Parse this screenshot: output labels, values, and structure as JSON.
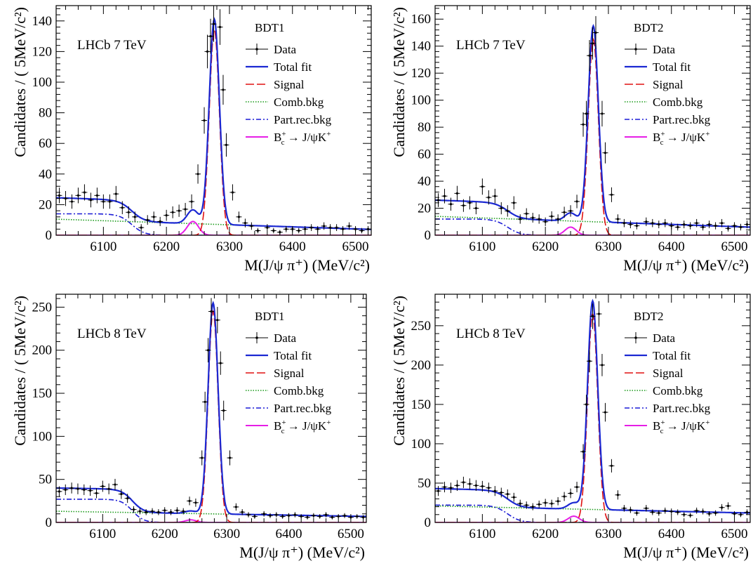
{
  "chart_data": [
    {
      "type": "line",
      "label_experiment": "LHCb 7 TeV",
      "label_selection": "BDT1",
      "xlabel": "M(J/ψ π⁺) (MeV/c²)",
      "ylabel": "Candidates / ( 5MeV/c²)",
      "xlim": [
        6025,
        6525
      ],
      "ylim": [
        0,
        150
      ],
      "xticks": [
        6100,
        6200,
        6300,
        6400,
        6500
      ],
      "yticks": [
        0,
        20,
        40,
        60,
        80,
        100,
        120,
        140
      ],
      "legend": [
        "Data",
        "Total fit",
        "Signal",
        "Comb.bkg",
        "Part.rec.bkg",
        "B_c^+ → J/ψK^+"
      ],
      "signal": {
        "mean": 6276,
        "sigma": 8,
        "amp": 134
      },
      "comb": {
        "a": 10.5,
        "b": 3.8
      },
      "partrec": {
        "level": 14,
        "edge": 6145,
        "width": 10
      },
      "bc2jpsik": {
        "mean": 6242,
        "sigma": 9,
        "amp": 9
      },
      "data": [
        [
          6030,
          26
        ],
        [
          6040,
          24
        ],
        [
          6050,
          22
        ],
        [
          6060,
          26
        ],
        [
          6070,
          28
        ],
        [
          6080,
          23
        ],
        [
          6090,
          26
        ],
        [
          6100,
          22
        ],
        [
          6110,
          22
        ],
        [
          6120,
          27
        ],
        [
          6130,
          18
        ],
        [
          6140,
          15
        ],
        [
          6150,
          12
        ],
        [
          6160,
          5
        ],
        [
          6170,
          10
        ],
        [
          6180,
          12
        ],
        [
          6190,
          9
        ],
        [
          6200,
          13
        ],
        [
          6210,
          15
        ],
        [
          6220,
          16
        ],
        [
          6230,
          17
        ],
        [
          6240,
          22
        ],
        [
          6250,
          40
        ],
        [
          6260,
          75
        ],
        [
          6265,
          120
        ],
        [
          6270,
          130
        ],
        [
          6275,
          138
        ],
        [
          6285,
          136
        ],
        [
          6290,
          95
        ],
        [
          6295,
          59
        ],
        [
          6305,
          28
        ],
        [
          6315,
          12
        ],
        [
          6325,
          8
        ],
        [
          6335,
          6
        ],
        [
          6345,
          3
        ],
        [
          6360,
          5
        ],
        [
          6370,
          3
        ],
        [
          6380,
          2
        ],
        [
          6390,
          4
        ],
        [
          6400,
          4
        ],
        [
          6410,
          3
        ],
        [
          6420,
          4
        ],
        [
          6430,
          5
        ],
        [
          6440,
          4
        ],
        [
          6450,
          6
        ],
        [
          6460,
          5
        ],
        [
          6470,
          5
        ],
        [
          6480,
          4
        ],
        [
          6490,
          6
        ],
        [
          6500,
          4
        ],
        [
          6510,
          3
        ],
        [
          6520,
          4
        ]
      ]
    },
    {
      "type": "line",
      "label_experiment": "LHCb 7 TeV",
      "label_selection": "BDT2",
      "xlabel": "M(J/ψ π⁺) (MeV/c²)",
      "ylabel": "Candidates / ( 5MeV/c²)",
      "xlim": [
        6025,
        6525
      ],
      "ylim": [
        0,
        170
      ],
      "xticks": [
        6100,
        6200,
        6300,
        6400,
        6500
      ],
      "yticks": [
        0,
        20,
        40,
        60,
        80,
        100,
        120,
        140,
        160
      ],
      "legend": [
        "Data",
        "Total fit",
        "Signal",
        "Comb.bkg",
        "Part.rec.bkg",
        "B_c^+ → J/ψK^+"
      ],
      "signal": {
        "mean": 6276,
        "sigma": 8,
        "amp": 145
      },
      "comb": {
        "a": 14,
        "b": 6
      },
      "partrec": {
        "level": 12,
        "edge": 6140,
        "width": 10
      },
      "bc2jpsik": {
        "mean": 6240,
        "sigma": 9,
        "amp": 6
      },
      "data": [
        [
          6030,
          26
        ],
        [
          6040,
          29
        ],
        [
          6050,
          23
        ],
        [
          6060,
          31
        ],
        [
          6070,
          22
        ],
        [
          6080,
          24
        ],
        [
          6090,
          20
        ],
        [
          6100,
          36
        ],
        [
          6110,
          28
        ],
        [
          6120,
          29
        ],
        [
          6130,
          20
        ],
        [
          6140,
          18
        ],
        [
          6150,
          24
        ],
        [
          6160,
          12
        ],
        [
          6170,
          16
        ],
        [
          6180,
          13
        ],
        [
          6190,
          12
        ],
        [
          6200,
          10
        ],
        [
          6210,
          14
        ],
        [
          6220,
          12
        ],
        [
          6230,
          17
        ],
        [
          6240,
          18
        ],
        [
          6250,
          25
        ],
        [
          6260,
          82
        ],
        [
          6265,
          90
        ],
        [
          6270,
          133
        ],
        [
          6275,
          142
        ],
        [
          6280,
          150
        ],
        [
          6290,
          90
        ],
        [
          6295,
          61
        ],
        [
          6305,
          30
        ],
        [
          6315,
          12
        ],
        [
          6325,
          9
        ],
        [
          6335,
          8
        ],
        [
          6345,
          7
        ],
        [
          6360,
          10
        ],
        [
          6370,
          9
        ],
        [
          6380,
          8
        ],
        [
          6390,
          9
        ],
        [
          6400,
          7
        ],
        [
          6410,
          6
        ],
        [
          6420,
          8
        ],
        [
          6430,
          7
        ],
        [
          6440,
          9
        ],
        [
          6450,
          6
        ],
        [
          6460,
          8
        ],
        [
          6470,
          7
        ],
        [
          6480,
          9
        ],
        [
          6490,
          5
        ],
        [
          6500,
          7
        ],
        [
          6510,
          6
        ],
        [
          6520,
          8
        ]
      ]
    },
    {
      "type": "line",
      "label_experiment": "LHCb 8 TeV",
      "label_selection": "BDT1",
      "xlabel": "M(J/ψ π⁺) (MeV/c²)",
      "ylabel": "Candidates / ( 5MeV/c²)",
      "xlim": [
        6025,
        6525
      ],
      "ylim": [
        0,
        265
      ],
      "xticks": [
        6100,
        6200,
        6300,
        6400,
        6500
      ],
      "yticks": [
        0,
        50,
        100,
        150,
        200,
        250
      ],
      "legend": [
        "Data",
        "Total fit",
        "Signal",
        "Comb.bkg",
        "Part.rec.bkg",
        "B_c^+ → J/ψK^+"
      ],
      "signal": {
        "mean": 6278,
        "sigma": 8,
        "amp": 245
      },
      "comb": {
        "a": 13,
        "b": 7
      },
      "partrec": {
        "level": 27,
        "edge": 6148,
        "width": 9
      },
      "bc2jpsik": {
        "mean": 6242,
        "sigma": 9,
        "amp": 3
      },
      "data": [
        [
          6030,
          36
        ],
        [
          6040,
          38
        ],
        [
          6050,
          40
        ],
        [
          6060,
          39
        ],
        [
          6070,
          38
        ],
        [
          6080,
          37
        ],
        [
          6090,
          34
        ],
        [
          6100,
          42
        ],
        [
          6110,
          39
        ],
        [
          6120,
          44
        ],
        [
          6130,
          33
        ],
        [
          6140,
          28
        ],
        [
          6150,
          15
        ],
        [
          6160,
          13
        ],
        [
          6170,
          12
        ],
        [
          6180,
          13
        ],
        [
          6190,
          12
        ],
        [
          6200,
          14
        ],
        [
          6210,
          12
        ],
        [
          6220,
          14
        ],
        [
          6230,
          13
        ],
        [
          6240,
          25
        ],
        [
          6250,
          23
        ],
        [
          6260,
          75
        ],
        [
          6265,
          140
        ],
        [
          6270,
          200
        ],
        [
          6275,
          245
        ],
        [
          6285,
          235
        ],
        [
          6290,
          185
        ],
        [
          6295,
          130
        ],
        [
          6305,
          75
        ],
        [
          6315,
          18
        ],
        [
          6325,
          12
        ],
        [
          6335,
          9
        ],
        [
          6345,
          7
        ],
        [
          6360,
          10
        ],
        [
          6370,
          8
        ],
        [
          6380,
          9
        ],
        [
          6390,
          7
        ],
        [
          6400,
          8
        ],
        [
          6410,
          9
        ],
        [
          6420,
          7
        ],
        [
          6430,
          6
        ],
        [
          6440,
          8
        ],
        [
          6450,
          7
        ],
        [
          6460,
          9
        ],
        [
          6470,
          6
        ],
        [
          6480,
          7
        ],
        [
          6490,
          8
        ],
        [
          6500,
          6
        ],
        [
          6510,
          7
        ],
        [
          6520,
          6
        ]
      ]
    },
    {
      "type": "line",
      "label_experiment": "LHCb 8 TeV",
      "label_selection": "BDT2",
      "xlabel": "M(J/ψ π⁺) (MeV/c²)",
      "ylabel": "Candidates / ( 5MeV/c²)",
      "xlim": [
        6025,
        6525
      ],
      "ylim": [
        0,
        290
      ],
      "xticks": [
        6100,
        6200,
        6300,
        6400,
        6500
      ],
      "yticks": [
        0,
        50,
        100,
        150,
        200,
        250
      ],
      "legend": [
        "Data",
        "Total fit",
        "Signal",
        "Comb.bkg",
        "Part.rec.bkg",
        "B_c^+ → J/ψK^+"
      ],
      "signal": {
        "mean": 6275,
        "sigma": 8,
        "amp": 265
      },
      "comb": {
        "a": 21,
        "b": 12
      },
      "partrec": {
        "level": 22,
        "edge": 6140,
        "width": 10
      },
      "bc2jpsik": {
        "mean": 6245,
        "sigma": 9,
        "amp": 8
      },
      "data": [
        [
          6030,
          40
        ],
        [
          6040,
          45
        ],
        [
          6050,
          44
        ],
        [
          6060,
          47
        ],
        [
          6070,
          51
        ],
        [
          6080,
          49
        ],
        [
          6090,
          47
        ],
        [
          6100,
          46
        ],
        [
          6110,
          44
        ],
        [
          6120,
          40
        ],
        [
          6130,
          38
        ],
        [
          6140,
          36
        ],
        [
          6150,
          32
        ],
        [
          6160,
          24
        ],
        [
          6170,
          22
        ],
        [
          6180,
          20
        ],
        [
          6190,
          23
        ],
        [
          6200,
          25
        ],
        [
          6210,
          24
        ],
        [
          6220,
          27
        ],
        [
          6230,
          33
        ],
        [
          6240,
          37
        ],
        [
          6250,
          45
        ],
        [
          6260,
          90
        ],
        [
          6265,
          150
        ],
        [
          6270,
          205
        ],
        [
          6275,
          262
        ],
        [
          6285,
          265
        ],
        [
          6290,
          200
        ],
        [
          6295,
          140
        ],
        [
          6305,
          72
        ],
        [
          6315,
          35
        ],
        [
          6325,
          18
        ],
        [
          6335,
          16
        ],
        [
          6345,
          12
        ],
        [
          6360,
          18
        ],
        [
          6370,
          13
        ],
        [
          6380,
          12
        ],
        [
          6390,
          15
        ],
        [
          6400,
          14
        ],
        [
          6410,
          13
        ],
        [
          6420,
          10
        ],
        [
          6430,
          9
        ],
        [
          6440,
          15
        ],
        [
          6450,
          14
        ],
        [
          6460,
          11
        ],
        [
          6470,
          12
        ],
        [
          6480,
          19
        ],
        [
          6490,
          21
        ],
        [
          6500,
          11
        ],
        [
          6510,
          10
        ],
        [
          6520,
          13
        ]
      ]
    }
  ]
}
